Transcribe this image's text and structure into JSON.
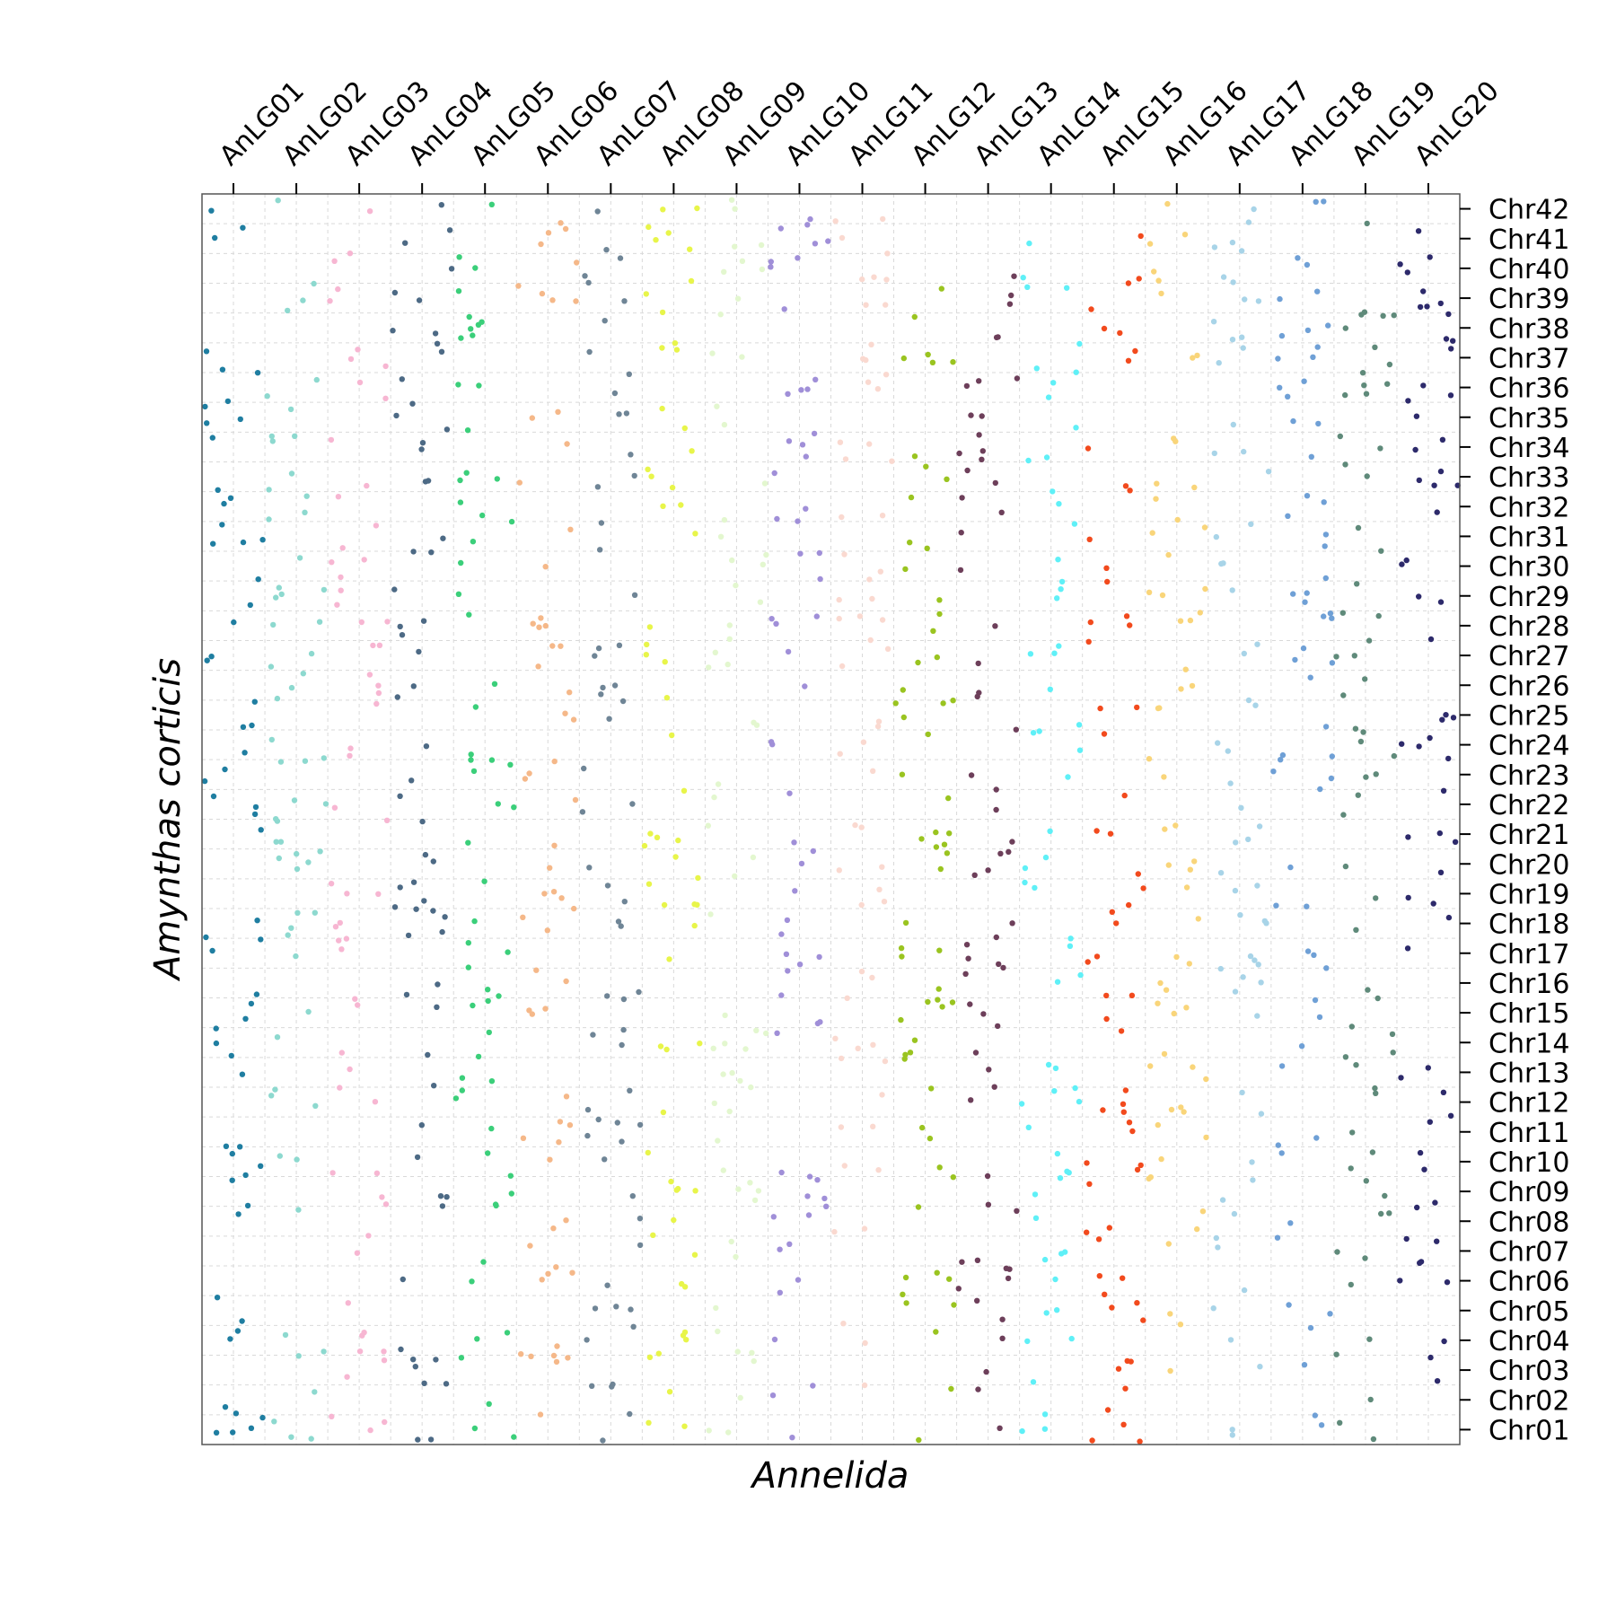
{
  "chart_data": {
    "type": "scatter",
    "xlabel": "Annelida",
    "ylabel": "Amynthas corticis",
    "x_tick_position": "top",
    "y_tick_position": "right",
    "grid": true,
    "x_categories": [
      "AnLG01",
      "AnLG02",
      "AnLG03",
      "AnLG04",
      "AnLG05",
      "AnLG06",
      "AnLG07",
      "AnLG08",
      "AnLG09",
      "AnLG10",
      "AnLG11",
      "AnLG12",
      "AnLG13",
      "AnLG14",
      "AnLG15",
      "AnLG16",
      "AnLG17",
      "AnLG18",
      "AnLG19",
      "AnLG20"
    ],
    "y_categories": [
      "Chr01",
      "Chr02",
      "Chr03",
      "Chr04",
      "Chr05",
      "Chr06",
      "Chr07",
      "Chr08",
      "Chr09",
      "Chr10",
      "Chr11",
      "Chr12",
      "Chr13",
      "Chr14",
      "Chr15",
      "Chr16",
      "Chr17",
      "Chr18",
      "Chr19",
      "Chr20",
      "Chr21",
      "Chr22",
      "Chr23",
      "Chr24",
      "Chr25",
      "Chr26",
      "Chr27",
      "Chr28",
      "Chr29",
      "Chr30",
      "Chr31",
      "Chr32",
      "Chr33",
      "Chr34",
      "Chr35",
      "Chr36",
      "Chr37",
      "Chr38",
      "Chr39",
      "Chr40",
      "Chr41",
      "Chr42"
    ],
    "colors": [
      "#1f7ea1",
      "#8dd9cf",
      "#f7b6d2",
      "#4d6a85",
      "#3bcf7a",
      "#f5b889",
      "#6f8596",
      "#e8f54a",
      "#e3f7cf",
      "#a08fd8",
      "#fad9d0",
      "#9ac420",
      "#6d3f5a",
      "#5ff0f7",
      "#f24a1d",
      "#f9d57a",
      "#a8d4e8",
      "#6fa0d6",
      "#5f8a7a",
      "#2d2a6b"
    ],
    "dot_density_per_group": 62
  }
}
